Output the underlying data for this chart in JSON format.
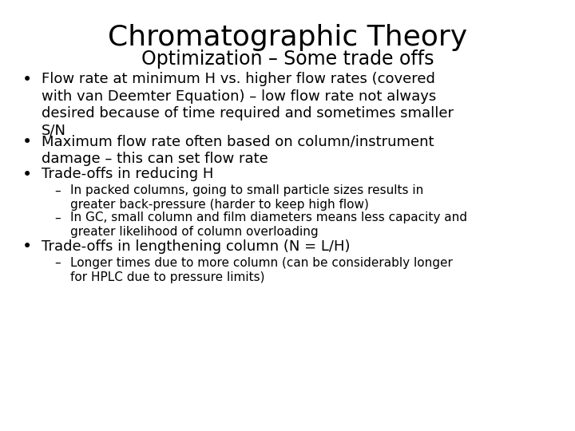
{
  "title": "Chromatographic Theory",
  "subtitle": "Optimization – Some trade offs",
  "background_color": "#ffffff",
  "text_color": "#000000",
  "title_fontsize": 26,
  "subtitle_fontsize": 17,
  "bullet_fontsize": 13,
  "sub_bullet_fontsize": 11,
  "bullets": [
    {
      "level": 1,
      "text": "Flow rate at minimum H vs. higher flow rates (covered\nwith van Deemter Equation) – low flow rate not always\ndesired because of time required and sometimes smaller\nS/N"
    },
    {
      "level": 1,
      "text": "Maximum flow rate often based on column/instrument\ndamage – this can set flow rate"
    },
    {
      "level": 1,
      "text": "Trade-offs in reducing H"
    },
    {
      "level": 2,
      "text": "In packed columns, going to small particle sizes results in\ngreater back-pressure (harder to keep high flow)"
    },
    {
      "level": 2,
      "text": "In GC, small column and film diameters means less capacity and\ngreater likelihood of column overloading"
    },
    {
      "level": 1,
      "text": "Trade-offs in lengthening column (N = L/H)"
    },
    {
      "level": 2,
      "text": "Longer times due to more column (can be considerably longer\nfor HPLC due to pressure limits)"
    }
  ]
}
